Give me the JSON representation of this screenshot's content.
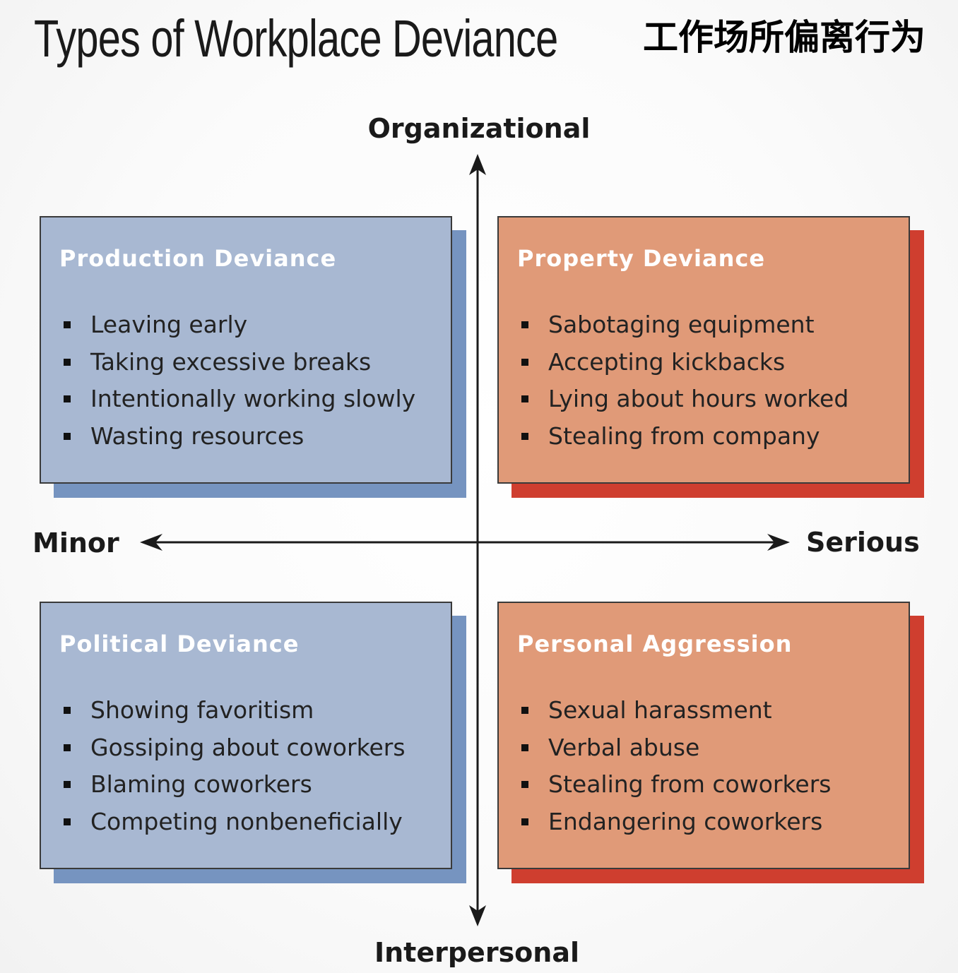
{
  "title_en": "Types of Workplace Deviance",
  "title_zh": "工作场所偏离行为",
  "axes": {
    "top": "Organizational",
    "bottom": "Interpersonal",
    "left": "Minor",
    "right": "Serious"
  },
  "quadrants": {
    "top_left": {
      "title": "Production Deviance",
      "items": [
        "Leaving early",
        "Taking excessive breaks",
        "Intentionally working slowly",
        "Wasting resources"
      ]
    },
    "top_right": {
      "title": "Property Deviance",
      "items": [
        "Sabotaging equipment",
        "Accepting kickbacks",
        "Lying about hours worked",
        "Stealing from company"
      ]
    },
    "bottom_left": {
      "title": "Political Deviance",
      "items": [
        "Showing favoritism",
        "Gossiping about coworkers",
        "Blaming coworkers",
        "Competing nonbeneficially"
      ]
    },
    "bottom_right": {
      "title": "Personal Aggression",
      "items": [
        "Sexual harassment",
        "Verbal abuse",
        "Stealing from coworkers",
        "Endangering coworkers"
      ]
    }
  },
  "colors": {
    "minor_fill": "#a8b8d2",
    "minor_shadow": "#7694c0",
    "serious_fill": "#e09a78",
    "serious_shadow": "#cf3e2f"
  }
}
